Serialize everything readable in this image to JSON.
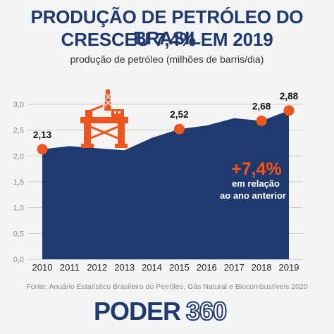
{
  "header": {
    "title_line1": "PRODUÇÃO DE PETRÓLEO DO BRASIL",
    "title_line2": "CRESCEU 7,4% EM 2019",
    "subtitle": "produção de petróleo (milhões de barris/dia)"
  },
  "chart_data": {
    "type": "area",
    "x": [
      "2010",
      "2011",
      "2012",
      "2013",
      "2014",
      "2015",
      "2016",
      "2017",
      "2018",
      "2019"
    ],
    "series": [
      {
        "values": [
          2.13,
          2.19,
          2.15,
          2.11,
          2.35,
          2.52,
          2.59,
          2.73,
          2.68,
          2.88
        ]
      }
    ],
    "ylim": [
      0,
      3.0
    ],
    "yticks": [
      "0,0",
      "0,5",
      "1,0",
      "1,5",
      "2,0",
      "2,5",
      "3,0"
    ],
    "point_labels": [
      {
        "x": "2010",
        "label": "2,13"
      },
      {
        "x": "2015",
        "label": "2,52"
      },
      {
        "x": "2018",
        "label": "2,68"
      },
      {
        "x": "2019",
        "label": "2,88"
      }
    ],
    "grid": true,
    "annotation": {
      "value": "+7,4%",
      "line1": "em relação",
      "line2": "ao ano anterior"
    },
    "colors": {
      "area": "#1f3a6e",
      "marker": "#f0551e",
      "grid": "#cccccc"
    },
    "icon": "oil-platform-icon"
  },
  "footer": {
    "source": "Fonte: Anuário Estatístico Brasileiro do Petróleo, Gás Natural e Biocombustíveis 2020",
    "logo_part1": "PODER",
    "logo_part2": "360"
  }
}
